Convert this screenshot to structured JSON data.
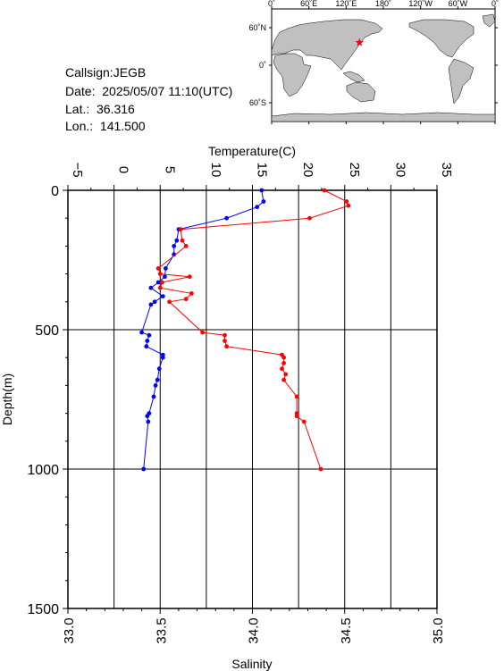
{
  "station": {
    "callsign_line": "Callsign:JEGB",
    "date_line": "Date:  2025/05/07 11:10(UTC)",
    "lat_line": "Lat.:  36.316",
    "lon_line": "Lon.:  141.500"
  },
  "map": {
    "lon_labels": [
      "0˚",
      "60˚E",
      "120˚E",
      "180˚",
      "120˚W",
      "60˚W",
      "0˚"
    ],
    "lat_labels": [
      "60˚N",
      "0˚",
      "60˚S"
    ],
    "marker": {
      "lon": 141.5,
      "lat": 36.316,
      "color": "#ff0000",
      "icon": "star-icon"
    },
    "ocean_color": "#ffffff",
    "land_color": "#c0c0c0"
  },
  "chart_data": {
    "type": "line",
    "y_label": "Depth(m)",
    "y_ticks": [
      "0",
      "500",
      "1000",
      "1500"
    ],
    "ylim": [
      1500,
      0
    ],
    "top_axis": {
      "label": "Temperature(C)",
      "range": [
        -5,
        35
      ],
      "ticks": [
        "−5",
        "0",
        "5",
        "10",
        "15",
        "20",
        "25",
        "30",
        "35"
      ]
    },
    "bottom_axis": {
      "label": "Salinity",
      "range": [
        33.0,
        35.0
      ],
      "ticks": [
        "33.0",
        "33.5",
        "34.0",
        "34.5",
        "35.0"
      ]
    },
    "grid": true,
    "series": [
      {
        "axis": "temperature",
        "color": "#0000ff",
        "points": [
          [
            16.0,
            0
          ],
          [
            16.2,
            40
          ],
          [
            15.5,
            60
          ],
          [
            12.2,
            100
          ],
          [
            7.0,
            140
          ],
          [
            6.8,
            180
          ],
          [
            6.5,
            200
          ],
          [
            6.5,
            230
          ],
          [
            5.6,
            280
          ],
          [
            5.5,
            310
          ],
          [
            4.8,
            330
          ],
          [
            4.0,
            350
          ],
          [
            5.3,
            380
          ],
          [
            4.4,
            400
          ],
          [
            4.0,
            410
          ],
          [
            3.0,
            510
          ],
          [
            3.8,
            520
          ],
          [
            3.6,
            540
          ],
          [
            3.5,
            560
          ],
          [
            5.3,
            590
          ],
          [
            5.3,
            600
          ],
          [
            4.9,
            640
          ],
          [
            4.7,
            680
          ],
          [
            4.5,
            700
          ],
          [
            4.3,
            740
          ],
          [
            3.8,
            800
          ],
          [
            3.6,
            810
          ],
          [
            3.7,
            830
          ],
          [
            3.2,
            1000
          ]
        ]
      },
      {
        "axis": "salinity",
        "color": "#ff0000",
        "points": [
          [
            34.39,
            0
          ],
          [
            34.51,
            40
          ],
          [
            34.52,
            55
          ],
          [
            34.31,
            100
          ],
          [
            33.61,
            140
          ],
          [
            33.62,
            180
          ],
          [
            33.64,
            200
          ],
          [
            33.49,
            280
          ],
          [
            33.5,
            300
          ],
          [
            33.66,
            310
          ],
          [
            33.51,
            330
          ],
          [
            33.5,
            350
          ],
          [
            33.67,
            370
          ],
          [
            33.64,
            390
          ],
          [
            33.55,
            400
          ],
          [
            33.73,
            510
          ],
          [
            33.85,
            520
          ],
          [
            33.85,
            540
          ],
          [
            33.86,
            560
          ],
          [
            34.16,
            590
          ],
          [
            34.17,
            600
          ],
          [
            34.17,
            620
          ],
          [
            34.16,
            640
          ],
          [
            34.18,
            660
          ],
          [
            34.17,
            680
          ],
          [
            34.24,
            740
          ],
          [
            34.24,
            800
          ],
          [
            34.24,
            810
          ],
          [
            34.28,
            830
          ],
          [
            34.37,
            1000
          ]
        ]
      }
    ]
  }
}
